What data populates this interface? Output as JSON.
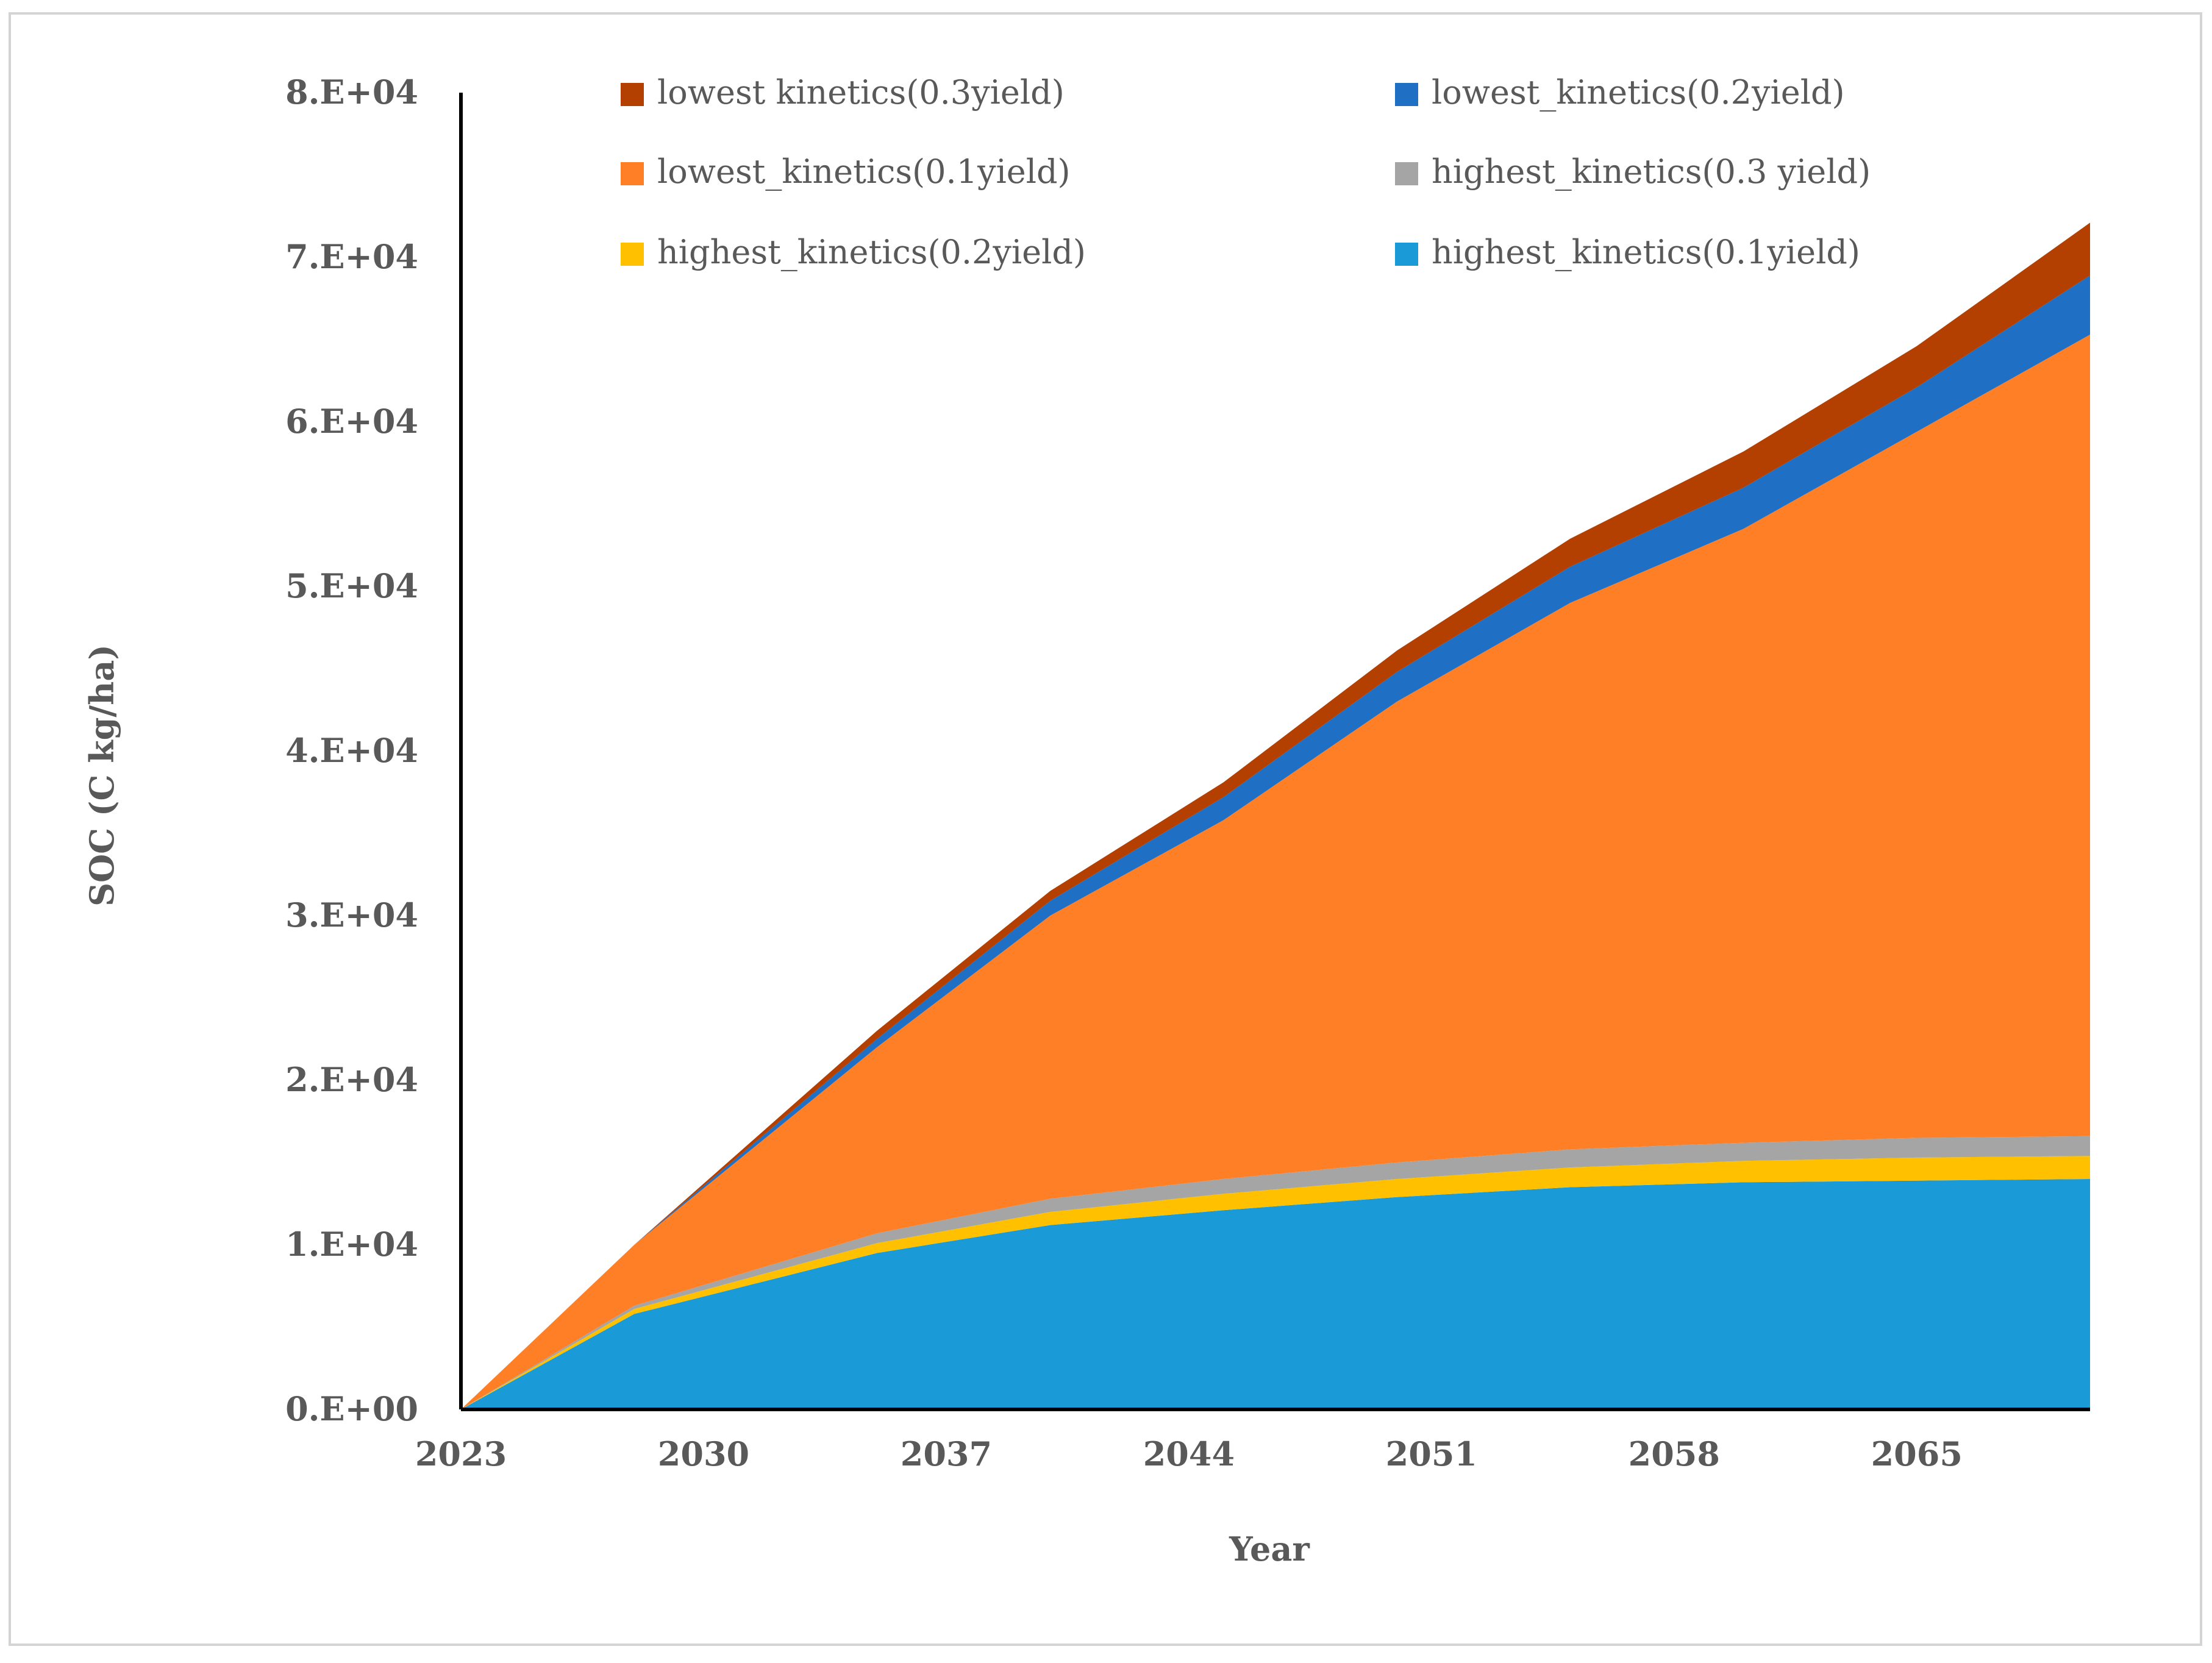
{
  "chart_data": {
    "type": "area",
    "stacked": true,
    "title": "",
    "xlabel": "Year",
    "ylabel": "SOC (C kg/ha)",
    "xlim": [
      2023,
      2070
    ],
    "ylim": [
      0,
      80000
    ],
    "x_ticks": [
      2023,
      2030,
      2037,
      2044,
      2051,
      2058,
      2065
    ],
    "x_tick_labels": [
      "2023",
      "2030",
      "2037",
      "2044",
      "2051",
      "2058",
      "2065"
    ],
    "y_ticks": [
      0,
      10000,
      20000,
      30000,
      40000,
      50000,
      60000,
      70000,
      80000
    ],
    "y_tick_labels": [
      "0.E+00",
      "1.E+04",
      "2.E+04",
      "3.E+04",
      "4.E+04",
      "5.E+04",
      "6.E+04",
      "7.E+04",
      "8.E+04"
    ],
    "grid": false,
    "legend_position": "top",
    "x": [
      2023,
      2028,
      2035,
      2040,
      2045,
      2050,
      2055,
      2060,
      2065,
      2070
    ],
    "series": [
      {
        "name": "highest_kinetics(0.1yield)",
        "color": "#1a9bd7",
        "values": [
          0,
          5800,
          9500,
          11200,
          12100,
          12900,
          13500,
          13800,
          13900,
          14000
        ]
      },
      {
        "name": "highest_kinetics(0.2yield)",
        "color": "#ffc000",
        "values": [
          0,
          300,
          600,
          800,
          1000,
          1100,
          1200,
          1300,
          1400,
          1400
        ]
      },
      {
        "name": "highest_kinetics(0.3 yield)",
        "color": "#a5a5a5",
        "values": [
          0,
          200,
          600,
          800,
          900,
          1000,
          1100,
          1100,
          1200,
          1200
        ]
      },
      {
        "name": "lowest_kinetics(0.1yield)",
        "color": "#ff7f27",
        "values": [
          0,
          3700,
          11300,
          17200,
          21800,
          28000,
          33200,
          37300,
          42900,
          48700
        ]
      },
      {
        "name": "lowest_kinetics(0.2yield)",
        "color": "#1f6fc4",
        "values": [
          0,
          0,
          500,
          900,
          1400,
          1800,
          2200,
          2500,
          2700,
          3600
        ]
      },
      {
        "name": "lowest kinetics(0.3yield)",
        "color": "#b34000",
        "values": [
          0,
          0,
          500,
          600,
          900,
          1300,
          1700,
          2200,
          2500,
          3200
        ]
      }
    ],
    "legend_order": [
      "lowest kinetics(0.3yield)",
      "lowest_kinetics(0.2yield)",
      "lowest_kinetics(0.1yield)",
      "highest_kinetics(0.3 yield)",
      "highest_kinetics(0.2yield)",
      "highest_kinetics(0.1yield)"
    ]
  }
}
